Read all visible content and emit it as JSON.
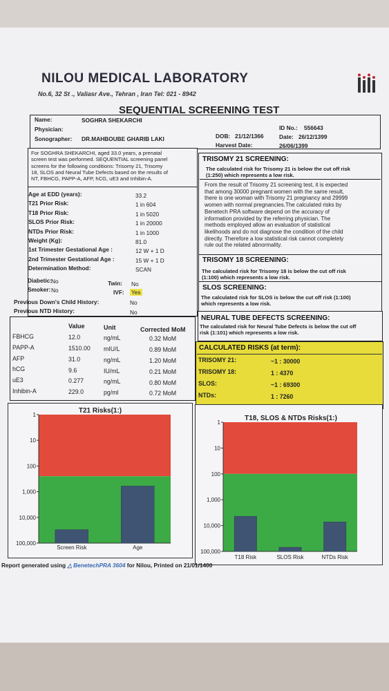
{
  "lab": {
    "name": "NILOU MEDICAL LABORATORY",
    "address": "No.6, 32 St ., Valiasr Ave., Tehran , Iran Tel: 021 - 8942"
  },
  "report_title": "SEQUENTIAL SCREENING TEST",
  "patient": {
    "name_label": "Name:",
    "name": "SOGHRA SHEKARCHI",
    "physician_label": "Physician:",
    "physician": "",
    "sonographer_label": "Sonographer:",
    "sonographer": "DR.MAHBOUBE GHARIB LAKI",
    "id_label": "ID No.:",
    "id": "556643",
    "dob_label": "DOB:",
    "dob": "21/12/1366",
    "date_label": "Date:",
    "date": "26/12/1399",
    "harvest_label": "Harvest Date:",
    "harvest": "26/06/1399"
  },
  "intro": [
    "For SOGHRA SHEKARCHI, aged 33.0 years, a prenatal",
    "screen test was performed. SEQUENTIAL screening panel",
    "screens for the following conditions: Trisomy 21, Trisomy",
    "18, SLOS and Neural Tube Defects based on the results of",
    "NT, FBHCG, PAPP-A, AFP, hCG, uE3 and Inhibin-A."
  ],
  "info_rows": [
    {
      "label": "Age at EDD (years):",
      "value": "33.2"
    },
    {
      "label": "T21 Prior Risk:",
      "value": "1 in 604"
    },
    {
      "label": "T18 Prior Risk:",
      "value": "1 in 5020"
    },
    {
      "label": "SLOS Prior Risk:",
      "value": "1 in 20000"
    },
    {
      "label": "NTDs Prior Risk:",
      "value": "1 in 1000"
    },
    {
      "label": "Weight (Kg):",
      "value": "81.0"
    },
    {
      "label": "1st Trimester Gestational Age :",
      "value": "12 W + 1 D"
    },
    {
      "label": "2nd Trimester Gestational Age :",
      "value": "15 W + 1 D"
    },
    {
      "label": "Determination Method:",
      "value": "SCAN"
    }
  ],
  "flags": {
    "diabetic_label": "Diabetic:",
    "diabetic": "No",
    "twin_label": "Twin:",
    "twin": "No",
    "smoker_label": "Smoker:",
    "smoker": "No",
    "ivf_label": "IVF:",
    "ivf": "Yes",
    "prev_downs_label": "Previous Down's Child History:",
    "prev_downs": "No",
    "prev_ntd_label": "Previous NTD History:",
    "prev_ntd": "No"
  },
  "markers": {
    "headers": [
      "Value",
      "Unit",
      "Corrected MoM"
    ],
    "rows": [
      {
        "name": "FBHCG",
        "value": "12.0",
        "unit": "ng/mL",
        "mom": "0.32 MoM"
      },
      {
        "name": "PAPP-A",
        "value": "1510.00",
        "unit": "mIU/L",
        "mom": "0.89 MoM"
      },
      {
        "name": "AFP",
        "value": "31.0",
        "unit": "ng/mL",
        "mom": "1.20 MoM"
      },
      {
        "name": "hCG",
        "value": "9.6",
        "unit": "IU/mL",
        "mom": "0.21 MoM"
      },
      {
        "name": "uE3",
        "value": "0.277",
        "unit": "ng/mL",
        "mom": "0.80 MoM"
      },
      {
        "name": "Inhibin-A",
        "value": "229.0",
        "unit": "pg/ml",
        "mom": "0.72 MoM"
      }
    ]
  },
  "t21": {
    "heading": "TRISOMY 21 SCREENING:",
    "result": [
      "The calculated risk for Trisomy 21 is below the cut off risk",
      "(1:250) which represents a low risk."
    ],
    "explanation": [
      "From the result of Trisomy 21 screening test, it is expected",
      "that among 30000 pregnant women with the same result,",
      "there is one woman with Trisomy 21 pregnancy and 29999",
      "women with normal pregnancies.The calculated risks by",
      "Benetech PRA software depend on the accuracy of",
      "information provided by the referring physician. The",
      "methods employed allow an evaluation of statistical",
      "likelihoods and do not diagnose the condition of the child",
      "directly. Therefore a low statistical risk cannot completely",
      "rule out the related abnormality."
    ]
  },
  "t18": {
    "heading": "TRISOMY 18 SCREENING:",
    "result": [
      "The calculated risk for Trisomy 18 is below the cut off risk",
      "(1:100) which represents a low risk."
    ]
  },
  "slos": {
    "heading": "SLOS SCREENING:",
    "result": [
      "The calculated risk for SLOS is below the cut off risk (1:100)",
      "which represents a low risk."
    ]
  },
  "ntd": {
    "heading": "NEURAL TUBE DEFECTS SCREENING:",
    "result": [
      "The calculated risk for Neural Tube Defects is below the cut off",
      "risk (1:101) which represents a low risk."
    ]
  },
  "calculated": {
    "heading": "CALCULATED RISKS (at term):",
    "rows": [
      {
        "label": "TRISOMY 21:",
        "value": "~1 : 30000"
      },
      {
        "label": "TRISOMY 18:",
        "value": "1 : 4370"
      },
      {
        "label": "SLOS:",
        "value": "~1 : 69300"
      },
      {
        "label": "NTDs:",
        "value": "1 : 7260"
      }
    ]
  },
  "chart_data": [
    {
      "type": "bar",
      "title": "T21 Risks(1:)",
      "scale": "log",
      "ylim": [
        1,
        100000
      ],
      "ytick_labels": [
        "1",
        "10",
        "100",
        "1,000",
        "10,000",
        "100,000"
      ],
      "categories": [
        "Screen Risk",
        "Age"
      ],
      "values": [
        30000,
        604
      ],
      "cutoff": 250,
      "colors": {
        "high": "#e24a3b",
        "low": "#3cab46",
        "bar": "#3e5472"
      }
    },
    {
      "type": "bar",
      "title": "T18, SLOS & NTDs Risks(1:)",
      "scale": "log",
      "ylim": [
        1,
        100000
      ],
      "ytick_labels": [
        "1",
        "10",
        "100",
        "1,000",
        "10,000",
        "100,000"
      ],
      "categories": [
        "T18 Risk",
        "SLOS Risk",
        "NTDs Risk"
      ],
      "values": [
        4370,
        69300,
        7260
      ],
      "cutoff": 100,
      "colors": {
        "high": "#e24a3b",
        "low": "#3cab46",
        "bar": "#3e5472"
      }
    }
  ],
  "footer": {
    "prefix": "Report generated using",
    "software": "BenetechPRA 3604",
    "suffix": "for Nilou, Printed on 21/01/1400"
  }
}
